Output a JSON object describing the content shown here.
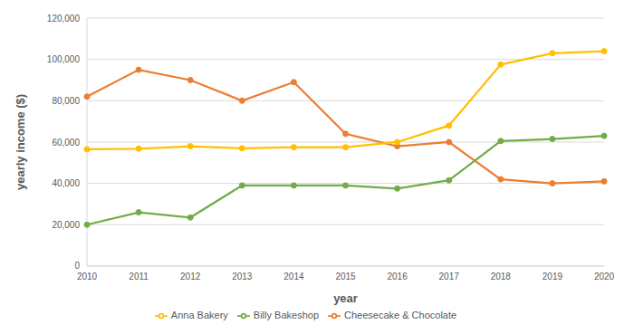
{
  "chart_data": {
    "type": "line",
    "x_label": "year",
    "y_label": "yearly income ($)",
    "categories": [
      "2010",
      "2011",
      "2012",
      "2013",
      "2014",
      "2015",
      "2016",
      "2017",
      "2018",
      "2019",
      "2020"
    ],
    "series": [
      {
        "name": "Cheesecake & Chocolate",
        "color": "#ed7d31",
        "values": [
          82000,
          95000,
          90000,
          80000,
          89000,
          64000,
          58000,
          60000,
          42000,
          40000,
          41000
        ]
      },
      {
        "name": "Anna Bakery",
        "color": "#ffc000",
        "values": [
          56500,
          56800,
          58000,
          57000,
          57500,
          57500,
          60000,
          68000,
          97500,
          103000,
          104000
        ]
      },
      {
        "name": "Billy Bakeshop",
        "color": "#70ad47",
        "values": [
          20000,
          26000,
          23500,
          39000,
          39000,
          39000,
          37500,
          41500,
          60500,
          61500,
          63000
        ]
      }
    ],
    "ylim": [
      0,
      120000
    ],
    "yticks": [
      0,
      {
        "value": 20000,
        "label": "20,000"
      },
      {
        "value": 40000,
        "label": "40,000"
      },
      {
        "value": 60000,
        "label": "60,000"
      },
      {
        "value": 80000,
        "label": "80,000"
      },
      {
        "value": 100000,
        "label": "100,000"
      },
      {
        "value": 120000,
        "label": "120,000"
      }
    ],
    "grid": true,
    "legend": "bottom",
    "marker": "circle"
  }
}
